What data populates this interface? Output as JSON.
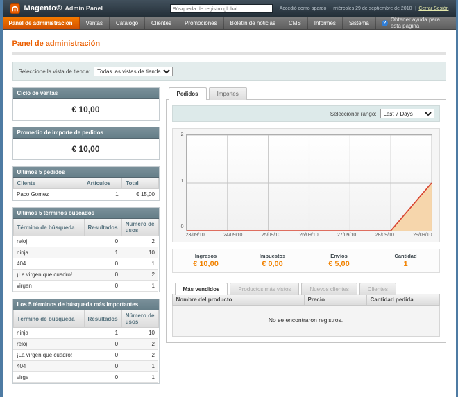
{
  "header": {
    "brand": "Magento®",
    "brand_suffix": "Admin Panel",
    "search_placeholder": "Búsqueda de registro global",
    "logged_in_as": "Accedió como apardo",
    "date": "miércoles 29 de septiembre de 2010",
    "logout_label": "Cerrar Sesión"
  },
  "nav": {
    "items": [
      "Panel de administración",
      "Ventas",
      "Catálogo",
      "Clientes",
      "Promociones",
      "Boletín de noticias",
      "CMS",
      "Informes",
      "Sistema"
    ],
    "active": "Panel de administración",
    "help_label": "Obtener ayuda para esta página"
  },
  "page": {
    "title": "Panel de administración",
    "store_view_label": "Seleccione la vista de tienda:",
    "store_view_value": "Todas las vistas de tienda"
  },
  "sidebar": {
    "lifetime_sales": {
      "title": "Ciclo de ventas",
      "value": "€ 10,00"
    },
    "average_orders": {
      "title": "Promedio de importe de pedidos",
      "value": "€ 10,00"
    },
    "last_orders": {
      "title": "Ultimos 5 pedidos",
      "headers": [
        "Cliente",
        "Artículos",
        "Total"
      ],
      "rows": [
        [
          "Paco Gomez",
          "1",
          "€ 15,00"
        ]
      ]
    },
    "last_search": {
      "title": "Ultimos 5 términos buscados",
      "headers": [
        "Término de búsqueda",
        "Resultados",
        "Número de usos"
      ],
      "rows": [
        [
          "reloj",
          "0",
          "2"
        ],
        [
          "ninja",
          "1",
          "10"
        ],
        [
          "404",
          "0",
          "1"
        ],
        [
          "¡La virgen que cuadro!",
          "0",
          "2"
        ],
        [
          "virgen",
          "0",
          "1"
        ]
      ]
    },
    "top_search": {
      "title": "Los 5 términos de búsqueda más importantes",
      "headers": [
        "Término de búsqueda",
        "Resultados",
        "Número de usos"
      ],
      "rows": [
        [
          "ninja",
          "1",
          "10"
        ],
        [
          "reloj",
          "0",
          "2"
        ],
        [
          "¡La virgen que cuadro!",
          "0",
          "2"
        ],
        [
          "404",
          "0",
          "1"
        ],
        [
          "virge",
          "0",
          "1"
        ]
      ]
    }
  },
  "dashboard": {
    "tabs": [
      "Pedidos",
      "Importes"
    ],
    "active_tab": "Pedidos",
    "range_label": "Seleccionar rango:",
    "range_value": "Last 7 Days",
    "totals": [
      {
        "label": "Ingresos",
        "value": "€ 10,00"
      },
      {
        "label": "Impuestos",
        "value": "€ 0,00"
      },
      {
        "label": "Envíos",
        "value": "€ 5,00"
      },
      {
        "label": "Cantidad",
        "value": "1"
      }
    ],
    "bottom_tabs": [
      "Más vendidos",
      "Productos más vistos",
      "Nuevos clientes",
      "Clientes"
    ],
    "bottom_active_tab": "Más vendidos",
    "grid": {
      "headers": [
        "Nombre del producto",
        "Precio",
        "Cantidad pedida"
      ],
      "empty_text": "No se encontraron registros."
    }
  },
  "chart_data": {
    "type": "area",
    "title": "Pedidos - Last 7 Days",
    "x": [
      "23/09/10",
      "24/09/10",
      "25/09/10",
      "26/09/10",
      "27/09/10",
      "28/09/10",
      "29/09/10"
    ],
    "values": [
      0,
      0,
      0,
      0,
      0,
      0,
      1
    ],
    "ylim": [
      0,
      2
    ],
    "yticks": [
      0,
      1,
      2
    ],
    "grid": true,
    "line_color": "#d8432f",
    "fill_color": "#f6d3a4"
  },
  "colors": {
    "accent_orange": "#eb5e00",
    "nav_active": "#e65c00",
    "section_header": "#657e88",
    "value_orange": "#f18200",
    "page_frame_blue": "#4e7ba3"
  }
}
